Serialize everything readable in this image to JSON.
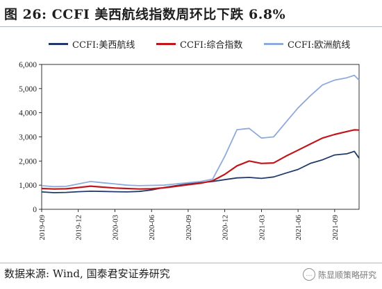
{
  "figure": {
    "title": "图 26:  CCFI 美西航线指数周环比下跌 6.8%",
    "source": "数据来源:  Wind, 国泰君安证券研究",
    "watermark": "陈显顺策略研究",
    "watermark_icon": "speech-bubble-icon"
  },
  "chart_data": {
    "type": "line",
    "ylim": [
      0,
      6000
    ],
    "yticks": [
      "0",
      "1,000",
      "2,000",
      "3,000",
      "4,000",
      "5,000",
      "6,000"
    ],
    "xticks": [
      "2019-09",
      "2019-12",
      "2020-03",
      "2020-06",
      "2020-09",
      "2020-12",
      "2021-03",
      "2021-06",
      "2021-09"
    ],
    "xlim": [
      "2019-09",
      "2021-11"
    ],
    "grid": false,
    "legend_position": "top",
    "series": [
      {
        "name": "CCFI:美西航线",
        "color": "#1f3a68",
        "points": [
          [
            "2019-09",
            720
          ],
          [
            "2019-10",
            690
          ],
          [
            "2019-11",
            700
          ],
          [
            "2019-12",
            730
          ],
          [
            "2020-01",
            750
          ],
          [
            "2020-02",
            740
          ],
          [
            "2020-03",
            730
          ],
          [
            "2020-04",
            720
          ],
          [
            "2020-05",
            740
          ],
          [
            "2020-06",
            800
          ],
          [
            "2020-07",
            900
          ],
          [
            "2020-08",
            980
          ],
          [
            "2020-09",
            1050
          ],
          [
            "2020-10",
            1100
          ],
          [
            "2020-11",
            1150
          ],
          [
            "2020-12",
            1230
          ],
          [
            "2021-01",
            1300
          ],
          [
            "2021-02",
            1320
          ],
          [
            "2021-03",
            1280
          ],
          [
            "2021-04",
            1340
          ],
          [
            "2021-05",
            1500
          ],
          [
            "2021-06",
            1650
          ],
          [
            "2021-07",
            1900
          ],
          [
            "2021-08",
            2050
          ],
          [
            "2021-09",
            2250
          ],
          [
            "2021-10",
            2300
          ],
          [
            "2021-10-20",
            2400
          ],
          [
            "2021-11",
            2120
          ]
        ]
      },
      {
        "name": "CCFI:综合指数",
        "color": "#c0151b",
        "points": [
          [
            "2019-09",
            860
          ],
          [
            "2019-10",
            840
          ],
          [
            "2019-11",
            850
          ],
          [
            "2019-12",
            900
          ],
          [
            "2020-01",
            960
          ],
          [
            "2020-02",
            920
          ],
          [
            "2020-03",
            880
          ],
          [
            "2020-04",
            860
          ],
          [
            "2020-05",
            840
          ],
          [
            "2020-06",
            850
          ],
          [
            "2020-07",
            890
          ],
          [
            "2020-08",
            950
          ],
          [
            "2020-09",
            1020
          ],
          [
            "2020-10",
            1080
          ],
          [
            "2020-11",
            1180
          ],
          [
            "2020-12",
            1450
          ],
          [
            "2021-01",
            1800
          ],
          [
            "2021-02",
            2000
          ],
          [
            "2021-03",
            1900
          ],
          [
            "2021-04",
            1920
          ],
          [
            "2021-05",
            2200
          ],
          [
            "2021-06",
            2450
          ],
          [
            "2021-07",
            2700
          ],
          [
            "2021-08",
            2950
          ],
          [
            "2021-09",
            3100
          ],
          [
            "2021-10",
            3220
          ],
          [
            "2021-10-20",
            3290
          ],
          [
            "2021-11",
            3280
          ]
        ]
      },
      {
        "name": "CCFI:欧洲航线",
        "color": "#8ea9db",
        "points": [
          [
            "2019-09",
            980
          ],
          [
            "2019-10",
            940
          ],
          [
            "2019-11",
            950
          ],
          [
            "2019-12",
            1050
          ],
          [
            "2020-01",
            1150
          ],
          [
            "2020-02",
            1100
          ],
          [
            "2020-03",
            1050
          ],
          [
            "2020-04",
            1000
          ],
          [
            "2020-05",
            980
          ],
          [
            "2020-06",
            990
          ],
          [
            "2020-07",
            1000
          ],
          [
            "2020-08",
            1050
          ],
          [
            "2020-09",
            1100
          ],
          [
            "2020-10",
            1150
          ],
          [
            "2020-11",
            1250
          ],
          [
            "2020-12",
            2200
          ],
          [
            "2021-01",
            3300
          ],
          [
            "2021-02",
            3350
          ],
          [
            "2021-03",
            2950
          ],
          [
            "2021-04",
            3000
          ],
          [
            "2021-05",
            3600
          ],
          [
            "2021-06",
            4200
          ],
          [
            "2021-07",
            4700
          ],
          [
            "2021-08",
            5150
          ],
          [
            "2021-09",
            5350
          ],
          [
            "2021-10",
            5450
          ],
          [
            "2021-10-20",
            5550
          ],
          [
            "2021-11",
            5350
          ]
        ]
      }
    ]
  }
}
